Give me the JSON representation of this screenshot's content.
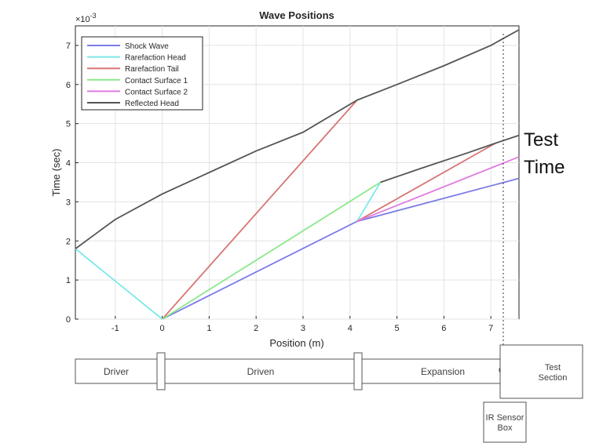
{
  "chart_data": {
    "type": "line",
    "title": "Wave Positions",
    "xlabel": "Position (m)",
    "ylabel": "Time (sec)",
    "exponent_label": "×10",
    "exponent_power": "-3",
    "xlim": [
      -1.85,
      7.6
    ],
    "ylim": [
      0,
      7.5
    ],
    "xticks": [
      -1,
      0,
      1,
      2,
      3,
      4,
      5,
      6,
      7
    ],
    "yticks": [
      0,
      1,
      2,
      3,
      4,
      5,
      6,
      7
    ],
    "grid": true,
    "legend_position": "top-left",
    "series": [
      {
        "name": "Shock Wave",
        "color": "#7b7be6",
        "points": [
          [
            0,
            0
          ],
          [
            4.15,
            2.5
          ],
          [
            7.6,
            3.6
          ]
        ]
      },
      {
        "name": "Rarefaction Head",
        "color": "#7de8ea",
        "points": [
          [
            0,
            0
          ],
          [
            -1.85,
            1.8
          ]
        ],
        "extra_segments": [
          [
            [
              4.15,
              2.5
            ],
            [
              4.65,
              3.5
            ]
          ]
        ]
      },
      {
        "name": "Rarefaction Tail",
        "color": "#d97575",
        "points": [
          [
            0,
            0
          ],
          [
            4.15,
            5.6
          ]
        ],
        "extra_segments": [
          [
            [
              4.15,
              2.5
            ],
            [
              7.1,
              4.5
            ]
          ]
        ]
      },
      {
        "name": "Contact Surface 1",
        "color": "#8be88b",
        "points": [
          [
            0,
            0
          ],
          [
            4.65,
            3.5
          ]
        ]
      },
      {
        "name": "Contact Surface 2",
        "color": "#e07be0",
        "points": [
          [
            4.15,
            2.5
          ],
          [
            7.6,
            4.15
          ]
        ]
      },
      {
        "name": "Reflected Head",
        "color": "#555555",
        "points": [
          [
            -1.85,
            1.8
          ],
          [
            -1.0,
            2.55
          ],
          [
            0,
            3.2
          ],
          [
            1,
            3.75
          ],
          [
            2,
            4.3
          ],
          [
            3,
            4.78
          ],
          [
            4.15,
            5.6
          ],
          [
            5,
            6.0
          ],
          [
            6,
            6.48
          ],
          [
            7,
            7.0
          ],
          [
            7.6,
            7.4
          ]
        ],
        "extra_segments": [
          [
            [
              4.65,
              3.5
            ],
            [
              5.5,
              3.85
            ],
            [
              6.5,
              4.25
            ],
            [
              7.1,
              4.5
            ],
            [
              7.6,
              4.7
            ]
          ]
        ]
      }
    ]
  },
  "annotation": {
    "line1": "Test",
    "line2": "Time"
  },
  "tube": {
    "driver_label": "Driver",
    "driven_label": "Driven",
    "expansion_label": "Expansion",
    "test_section_line1": "Test",
    "test_section_line2": "Section",
    "ir_sensor_line1": "IR Sensor",
    "ir_sensor_line2": "Box"
  }
}
